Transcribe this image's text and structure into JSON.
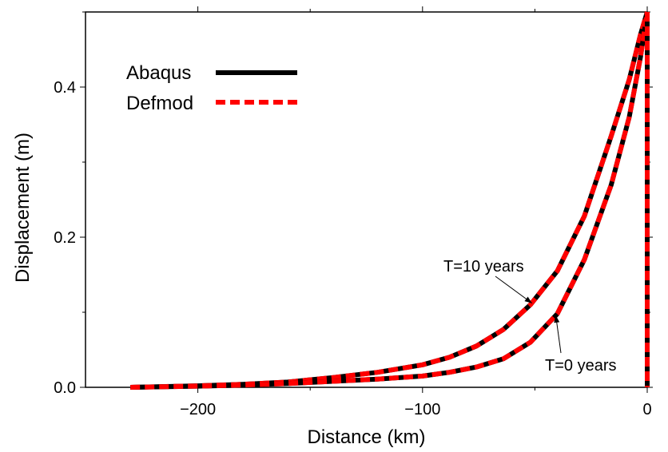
{
  "chart_data": {
    "type": "line",
    "xlabel": "Distance (km)",
    "ylabel": "Displacement (m)",
    "xlim": [
      -250,
      0
    ],
    "ylim": [
      0,
      0.5
    ],
    "x_ticks": [
      {
        "value": -200,
        "label": "−200"
      },
      {
        "value": -100,
        "label": "−100"
      },
      {
        "value": 0,
        "label": "0"
      }
    ],
    "y_ticks": [
      {
        "value": 0.0,
        "label": "0.0"
      },
      {
        "value": 0.2,
        "label": "0.2"
      },
      {
        "value": 0.4,
        "label": "0.4"
      }
    ],
    "x_minor_ticks": [
      -150,
      -50
    ],
    "y_minor_ticks": [
      0.1,
      0.3,
      0.5
    ],
    "grid": false,
    "legend_position": "top-left",
    "legend": [
      {
        "label": "Abaqus",
        "color": "#000000",
        "style": "solid"
      },
      {
        "label": "Defmod",
        "color": "#ff0000",
        "style": "dashed"
      }
    ],
    "series": [
      {
        "curve": "T=10 years",
        "x": [
          -230,
          -200,
          -180,
          -160,
          -140,
          -120,
          -100,
          -88,
          -76,
          -64,
          -52,
          -40,
          -28,
          -16,
          -8,
          -3,
          0
        ],
        "y": [
          0.0,
          0.002,
          0.004,
          0.007,
          0.013,
          0.02,
          0.03,
          0.04,
          0.055,
          0.077,
          0.11,
          0.155,
          0.228,
          0.335,
          0.41,
          0.47,
          0.5
        ]
      },
      {
        "curve": "T=0 years",
        "x": [
          -230,
          -200,
          -180,
          -160,
          -140,
          -120,
          -100,
          -88,
          -76,
          -64,
          -52,
          -40,
          -28,
          -16,
          -8,
          -3,
          0
        ],
        "y": [
          0.0,
          0.0015,
          0.003,
          0.005,
          0.008,
          0.011,
          0.015,
          0.02,
          0.027,
          0.038,
          0.06,
          0.098,
          0.17,
          0.27,
          0.36,
          0.44,
          0.5
        ]
      },
      {
        "curve": "vertical",
        "x": [
          0,
          0
        ],
        "y": [
          0.5,
          0.0
        ]
      }
    ],
    "annotations": [
      {
        "text": "T=10 years",
        "point_x": -52,
        "point_y": 0.11
      },
      {
        "text": "T=0 years",
        "point_x": -40,
        "point_y": 0.098
      }
    ]
  }
}
